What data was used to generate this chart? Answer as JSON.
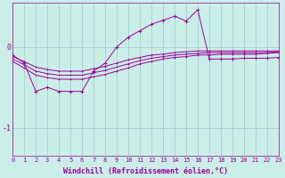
{
  "background_color": "#cceee8",
  "line_color": "#990099",
  "xlabel": "Windchill (Refroidissement éolien,°C)",
  "xlabel_fontsize": 6,
  "tick_fontsize": 5,
  "xlim": [
    0,
    23
  ],
  "ylim": [
    -1.35,
    0.55
  ],
  "yticks": [
    -1,
    0
  ],
  "xticks": [
    0,
    1,
    2,
    3,
    4,
    5,
    6,
    7,
    8,
    9,
    10,
    11,
    12,
    13,
    14,
    15,
    16,
    17,
    18,
    19,
    20,
    21,
    22,
    23
  ],
  "grid_color": "#99cccc",
  "x": [
    0,
    1,
    2,
    3,
    4,
    5,
    6,
    7,
    8,
    9,
    10,
    11,
    12,
    13,
    14,
    15,
    16,
    17,
    18,
    19,
    20,
    21,
    22,
    23
  ],
  "line1": [
    -0.1,
    -0.2,
    -0.55,
    -0.5,
    -0.55,
    -0.55,
    -0.55,
    -0.3,
    -0.2,
    0.0,
    0.12,
    0.2,
    0.28,
    0.33,
    0.38,
    0.32,
    0.46,
    -0.15,
    -0.15,
    -0.15,
    -0.14,
    -0.14,
    -0.14,
    -0.13
  ],
  "line2": [
    -0.12,
    -0.18,
    -0.25,
    -0.28,
    -0.3,
    -0.3,
    -0.3,
    -0.27,
    -0.24,
    -0.2,
    -0.16,
    -0.13,
    -0.1,
    -0.09,
    -0.07,
    -0.06,
    -0.05,
    -0.05,
    -0.05,
    -0.05,
    -0.05,
    -0.05,
    -0.05,
    -0.05
  ],
  "line3": [
    -0.15,
    -0.22,
    -0.3,
    -0.33,
    -0.35,
    -0.35,
    -0.35,
    -0.32,
    -0.29,
    -0.25,
    -0.21,
    -0.17,
    -0.14,
    -0.12,
    -0.1,
    -0.09,
    -0.08,
    -0.07,
    -0.07,
    -0.07,
    -0.07,
    -0.07,
    -0.07,
    -0.06
  ],
  "line4": [
    -0.18,
    -0.26,
    -0.35,
    -0.38,
    -0.4,
    -0.4,
    -0.4,
    -0.37,
    -0.34,
    -0.3,
    -0.26,
    -0.21,
    -0.18,
    -0.15,
    -0.13,
    -0.12,
    -0.1,
    -0.1,
    -0.09,
    -0.09,
    -0.09,
    -0.09,
    -0.08,
    -0.07
  ]
}
